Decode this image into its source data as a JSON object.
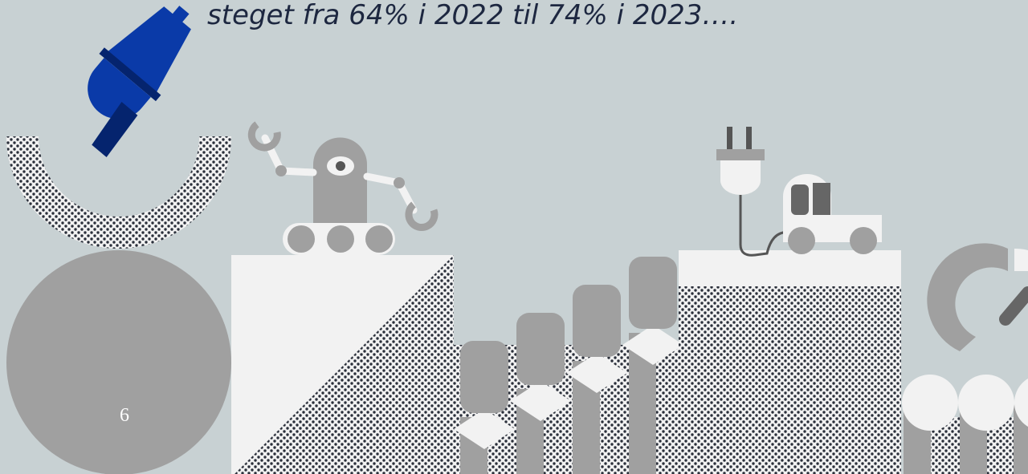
{
  "slide": {
    "text": "steget fra 64% i 2022 til 74% i 2023….",
    "page_number": "6"
  }
}
